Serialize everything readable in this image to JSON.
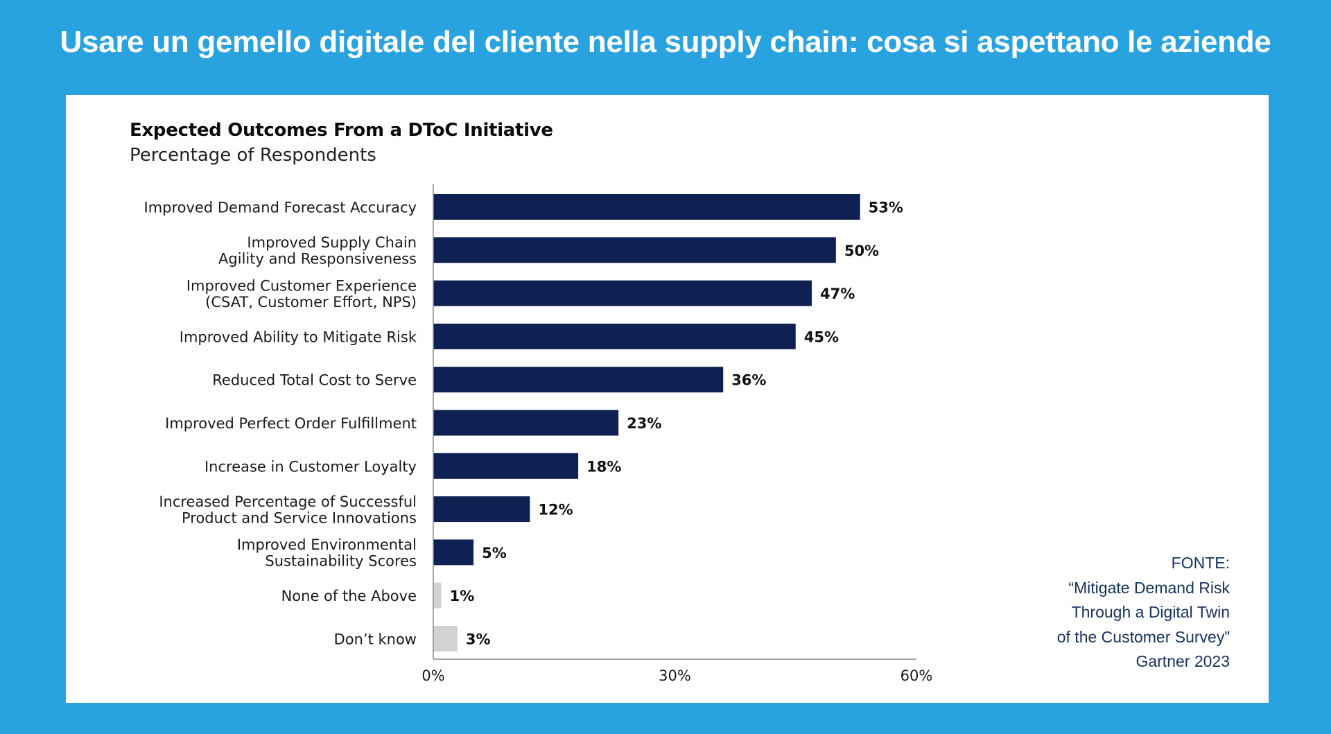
{
  "page": {
    "banner_title": "Usare un gemello digitale del cliente nella supply chain: cosa si aspettano le aziende"
  },
  "source": {
    "lines": [
      "FONTE:",
      "“Mitigate Demand Risk",
      "Through a Digital Twin",
      "of the Customer Survey”",
      "Gartner 2023"
    ]
  },
  "colors": {
    "background": "#29a3e0",
    "card": "#ffffff",
    "bar_primary": "#0e2152",
    "bar_secondary": "#d2d2d2",
    "source_text": "#12325e"
  },
  "chart_data": {
    "type": "bar",
    "orientation": "horizontal",
    "title": "Expected Outcomes From a DToC Initiative",
    "subtitle": "Percentage of Respondents",
    "categories": [
      [
        "Improved Demand Forecast Accuracy"
      ],
      [
        "Improved Supply Chain",
        "Agility and Responsiveness"
      ],
      [
        "Improved Customer Experience",
        "(CSAT, Customer Effort, NPS)"
      ],
      [
        "Improved Ability to Mitigate Risk"
      ],
      [
        "Reduced Total Cost to Serve"
      ],
      [
        "Improved Perfect Order Fulfillment"
      ],
      [
        "Increase in Customer Loyalty"
      ],
      [
        "Increased Percentage of Successful",
        "Product and Service Innovations"
      ],
      [
        "Improved Environmental",
        "Sustainability Scores"
      ],
      [
        "None of the Above"
      ],
      [
        "Don’t know"
      ]
    ],
    "values": [
      53,
      50,
      47,
      45,
      36,
      23,
      18,
      12,
      5,
      1,
      3
    ],
    "value_labels": [
      "53%",
      "50%",
      "47%",
      "45%",
      "36%",
      "23%",
      "18%",
      "12%",
      "5%",
      "1%",
      "3%"
    ],
    "bar_colors": [
      "#0e2152",
      "#0e2152",
      "#0e2152",
      "#0e2152",
      "#0e2152",
      "#0e2152",
      "#0e2152",
      "#0e2152",
      "#0e2152",
      "#d2d2d2",
      "#d2d2d2"
    ],
    "xlim": [
      0,
      60
    ],
    "xticks": [
      0,
      30,
      60
    ],
    "xtick_labels": [
      "0%",
      "30%",
      "60%"
    ],
    "grid": false,
    "legend": "none"
  }
}
